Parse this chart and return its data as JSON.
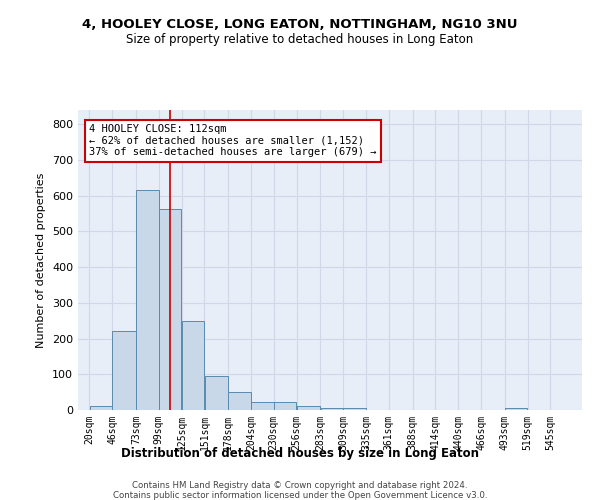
{
  "title_line1": "4, HOOLEY CLOSE, LONG EATON, NOTTINGHAM, NG10 3NU",
  "title_line2": "Size of property relative to detached houses in Long Eaton",
  "xlabel": "Distribution of detached houses by size in Long Eaton",
  "ylabel": "Number of detached properties",
  "bar_color": "#c8d8e8",
  "bar_edge_color": "#5a8ab0",
  "annotation_line_color": "#cc0000",
  "annotation_box_edge_color": "#cc0000",
  "annotation_text_line1": "4 HOOLEY CLOSE: 112sqm",
  "annotation_text_line2": "← 62% of detached houses are smaller (1,152)",
  "annotation_text_line3": "37% of semi-detached houses are larger (679) →",
  "categories": [
    "20sqm",
    "46sqm",
    "73sqm",
    "99sqm",
    "125sqm",
    "151sqm",
    "178sqm",
    "204sqm",
    "230sqm",
    "256sqm",
    "283sqm",
    "309sqm",
    "335sqm",
    "361sqm",
    "388sqm",
    "414sqm",
    "440sqm",
    "466sqm",
    "493sqm",
    "519sqm",
    "545sqm"
  ],
  "values": [
    10,
    222,
    617,
    563,
    250,
    95,
    50,
    22,
    22,
    12,
    5,
    5,
    0,
    0,
    0,
    0,
    0,
    0,
    5,
    0,
    0
  ],
  "ylim": [
    0,
    840
  ],
  "yticks": [
    0,
    100,
    200,
    300,
    400,
    500,
    600,
    700,
    800
  ],
  "grid_color": "#d0d8e8",
  "bg_color": "#e8eef8",
  "footer_line1": "Contains HM Land Registry data © Crown copyright and database right 2024.",
  "footer_line2": "Contains public sector information licensed under the Open Government Licence v3.0.",
  "property_sqm": 112,
  "bin_edges": [
    20,
    46,
    73,
    99,
    125,
    151,
    178,
    204,
    230,
    256,
    283,
    309,
    335,
    361,
    388,
    414,
    440,
    466,
    493,
    519,
    545,
    571
  ]
}
